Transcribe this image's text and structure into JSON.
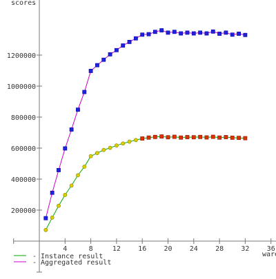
{
  "chart_data": {
    "type": "line",
    "title": "",
    "xlabel": "wares",
    "ylabel": "scores",
    "xlim": [
      -4,
      37
    ],
    "ylim": [
      -20000,
      1500000
    ],
    "xticks": [
      4,
      8,
      12,
      16,
      20,
      24,
      28,
      32,
      36
    ],
    "yticks": [
      200000,
      400000,
      600000,
      800000,
      1000000,
      1200000
    ],
    "grid": false,
    "legend_position": "bottom-left",
    "series": [
      {
        "name": "Instance result",
        "line_color": "#00aa00",
        "x": [
          1,
          2,
          3,
          4,
          5,
          6,
          7,
          8,
          9,
          10,
          11,
          12,
          13,
          14,
          15,
          16,
          17,
          18,
          19,
          20,
          21,
          22,
          23,
          24,
          25,
          26,
          27,
          28,
          29,
          30,
          31,
          32
        ],
        "values": [
          72000,
          152000,
          228000,
          298000,
          358000,
          425000,
          480000,
          548000,
          568000,
          588000,
          602000,
          617000,
          630000,
          642000,
          652000,
          662000,
          668000,
          672000,
          675000,
          670000,
          673000,
          668000,
          671000,
          670000,
          672000,
          669000,
          673000,
          668000,
          671000,
          667000,
          666000,
          664000
        ]
      },
      {
        "name": "Aggregated result",
        "line_color": "#cc00cc",
        "x": [
          1,
          2,
          3,
          4,
          5,
          6,
          7,
          8,
          9,
          10,
          11,
          12,
          13,
          14,
          15,
          16,
          17,
          18,
          19,
          20,
          21,
          22,
          23,
          24,
          25,
          26,
          27,
          28,
          29,
          30,
          31,
          32
        ],
        "values": [
          148000,
          312000,
          458000,
          598000,
          720000,
          848000,
          962000,
          1098000,
          1135000,
          1170000,
          1205000,
          1232000,
          1262000,
          1285000,
          1308000,
          1332000,
          1335000,
          1350000,
          1360000,
          1345000,
          1350000,
          1340000,
          1345000,
          1340000,
          1345000,
          1340000,
          1352000,
          1338000,
          1345000,
          1332000,
          1338000,
          1330000
        ]
      }
    ]
  }
}
